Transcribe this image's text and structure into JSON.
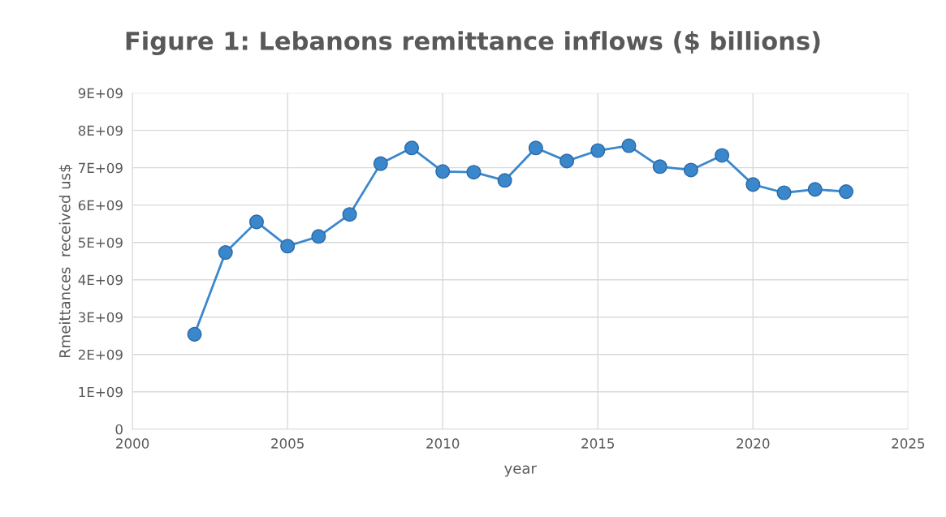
{
  "chart_data": {
    "type": "line",
    "title": "Figure 1: Lebanons remittance inflows ($ billions)",
    "xlabel": "year",
    "ylabel": "Rmeittances  received us$",
    "x": [
      2002,
      2003,
      2004,
      2005,
      2006,
      2007,
      2008,
      2009,
      2010,
      2011,
      2012,
      2013,
      2014,
      2015,
      2016,
      2017,
      2018,
      2019,
      2020,
      2021,
      2022,
      2023
    ],
    "series": [
      {
        "color": "#3a87cc",
        "values": [
          2540000000.0,
          4730000000.0,
          5550000000.0,
          4900000000.0,
          5160000000.0,
          5750000000.0,
          7110000000.0,
          7530000000.0,
          6900000000.0,
          6880000000.0,
          6660000000.0,
          7530000000.0,
          7180000000.0,
          7460000000.0,
          7590000000.0,
          7030000000.0,
          6940000000.0,
          7330000000.0,
          6550000000.0,
          6330000000.0,
          6420000000.0,
          6360000000.0
        ]
      }
    ],
    "xlim": [
      2000,
      2025
    ],
    "xticks": [
      2000,
      2005,
      2010,
      2015,
      2020,
      2025
    ],
    "ylim": [
      0,
      9000000000.0
    ],
    "yticks": [
      0,
      {
        "value": 1000000000.0,
        "label": "1E+09"
      },
      {
        "value": 2000000000.0,
        "label": "2E+09"
      },
      {
        "value": 3000000000.0,
        "label": "3E+09"
      },
      {
        "value": 4000000000.0,
        "label": "4E+09"
      },
      {
        "value": 5000000000.0,
        "label": "5E+09"
      },
      {
        "value": 6000000000.0,
        "label": "6E+09"
      },
      {
        "value": 7000000000.0,
        "label": "7E+09"
      },
      {
        "value": 8000000000.0,
        "label": "8E+09"
      },
      {
        "value": 9000000000.0,
        "label": "9E+09"
      }
    ],
    "grid": true,
    "marker": "circle",
    "line_style": "solid"
  }
}
